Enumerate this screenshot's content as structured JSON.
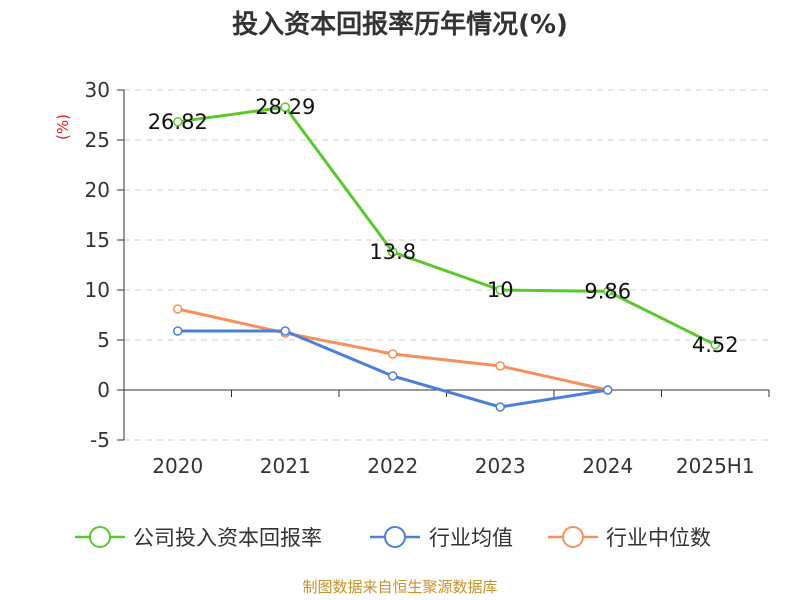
{
  "chart_data": {
    "type": "line",
    "title": "投入资本回报率历年情况(%)",
    "ylabel": "(%)",
    "categories": [
      "2020",
      "2021",
      "2022",
      "2023",
      "2024",
      "2025H1"
    ],
    "ylim": [
      -5,
      30
    ],
    "yticks": [
      30,
      25,
      20,
      15,
      10,
      5,
      0,
      -5
    ],
    "grid": "horizontal dashed",
    "legend_position": "bottom",
    "series": [
      {
        "name": "公司投入资本回报率",
        "color": "#5ac82a",
        "values": [
          26.82,
          28.29,
          13.8,
          10,
          9.86,
          4.52
        ],
        "labels": [
          "26.82",
          "28.29",
          "13.8",
          "10",
          "9.86",
          "4.52"
        ]
      },
      {
        "name": "行业均值",
        "color": "#4a80d8",
        "values": [
          5.9,
          5.9,
          1.4,
          -1.7,
          0,
          null
        ]
      },
      {
        "name": "行业中位数",
        "color": "#f5905a",
        "values": [
          8.1,
          5.7,
          3.6,
          2.4,
          0,
          null
        ]
      }
    ],
    "source": "制图数据来自恒生聚源数据库"
  }
}
